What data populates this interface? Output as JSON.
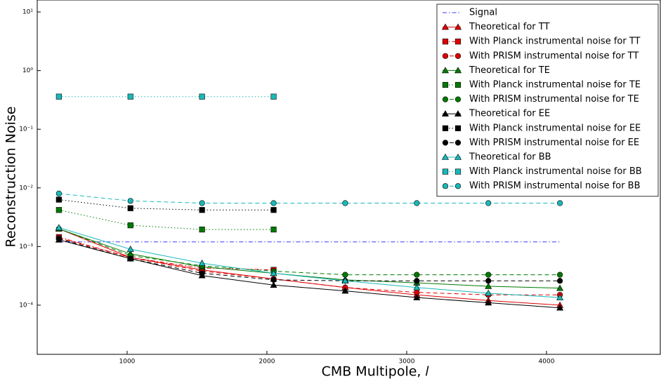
{
  "chart_data": {
    "type": "line",
    "y_label": "Reconstruction Noise",
    "x_label": "CMB Multipole, 𝑙",
    "log_y": true,
    "legend": "upper right",
    "xlim": [
      357,
      4814
    ],
    "ylim": [
      1.45e-05,
      16
    ],
    "xticks": [
      1000,
      2000,
      3000,
      4000
    ],
    "yticks": [
      {
        "value": 10,
        "label": "10¹"
      },
      {
        "value": 1,
        "label": "10⁰"
      },
      {
        "value": 0.1,
        "label": "10⁻¹"
      },
      {
        "value": 0.01,
        "label": "10⁻²"
      },
      {
        "value": 0.001,
        "label": "10⁻³"
      },
      {
        "value": 0.0001,
        "label": "10⁻⁴"
      }
    ],
    "x": [
      512,
      1024,
      1536,
      2048,
      2560,
      3072,
      3584,
      4096
    ],
    "series": [
      {
        "name": "Signal",
        "color": "#3a3aff",
        "dash": "dashdot",
        "marker": "none",
        "values": [
          0.0012,
          0.0012,
          0.0012,
          0.0012,
          0.0012,
          0.0012,
          0.0012,
          0.0012
        ]
      },
      {
        "name": "Theoretical for TT",
        "color": "#e00000",
        "dash": "solid",
        "marker": "triangle",
        "values": [
          0.002,
          0.00065,
          0.0004,
          0.00028,
          0.0002,
          0.00015,
          0.00012,
          0.0001
        ]
      },
      {
        "name": "With Planck instrumental noise for TT",
        "color": "#e00000",
        "dash": "dashdot",
        "marker": "square",
        "values": [
          0.00145,
          0.00065,
          0.00043,
          0.0004,
          null,
          null,
          null,
          null
        ]
      },
      {
        "name": "With PRISM instrumental noise for TT",
        "color": "#e00000",
        "dash": "dashed",
        "marker": "circle",
        "values": [
          0.0014,
          0.00065,
          0.00038,
          0.00028,
          0.0002,
          0.000165,
          0.00015,
          0.00015
        ]
      },
      {
        "name": "Theoretical for TE",
        "color": "#007a00",
        "dash": "solid",
        "marker": "triangle",
        "values": [
          0.002,
          0.00075,
          0.00045,
          0.00035,
          0.00027,
          0.00024,
          0.00021,
          0.000195
        ]
      },
      {
        "name": "With Planck instrumental noise for TE",
        "color": "#007a00",
        "dash": "dotted",
        "marker": "square",
        "values": [
          0.0042,
          0.0023,
          0.00195,
          0.00195,
          null,
          null,
          null,
          null
        ]
      },
      {
        "name": "With PRISM instrumental noise for TE",
        "color": "#007a00",
        "dash": "dashed",
        "marker": "circle",
        "values": [
          0.002,
          0.0007,
          0.00047,
          0.00038,
          0.00033,
          0.00033,
          0.00033,
          0.00033
        ]
      },
      {
        "name": "Theoretical for EE",
        "color": "#000000",
        "dash": "solid",
        "marker": "triangle",
        "values": [
          0.0013,
          0.00062,
          0.00032,
          0.00022,
          0.000175,
          0.000135,
          0.00011,
          9e-05
        ]
      },
      {
        "name": "With Planck instrumental noise for EE",
        "color": "#000000",
        "dash": "dotted",
        "marker": "square",
        "values": [
          0.0063,
          0.0045,
          0.0042,
          0.0042,
          null,
          null,
          null,
          null
        ]
      },
      {
        "name": "With PRISM instrumental noise for EE",
        "color": "#000000",
        "dash": "dashed",
        "marker": "circle",
        "values": [
          0.00135,
          0.00062,
          0.00035,
          0.00027,
          0.00026,
          0.00026,
          0.00026,
          0.00026
        ]
      },
      {
        "name": "Theoretical for BB",
        "color": "#1ab8b8",
        "dash": "solid",
        "marker": "triangle",
        "values": [
          0.0021,
          0.0009,
          0.00052,
          0.00035,
          0.00026,
          0.0002,
          0.00016,
          0.000135
        ]
      },
      {
        "name": "With Planck instrumental noise for BB",
        "color": "#1ab8b8",
        "dash": "dotted",
        "marker": "square",
        "values": [
          0.36,
          0.36,
          0.36,
          0.36,
          null,
          null,
          null,
          null
        ]
      },
      {
        "name": "With PRISM instrumental noise for BB",
        "color": "#1ab8b8",
        "dash": "dashed",
        "marker": "circle",
        "values": [
          0.008,
          0.006,
          0.0055,
          0.0055,
          0.0055,
          0.0055,
          0.0055,
          0.0055
        ]
      }
    ]
  }
}
